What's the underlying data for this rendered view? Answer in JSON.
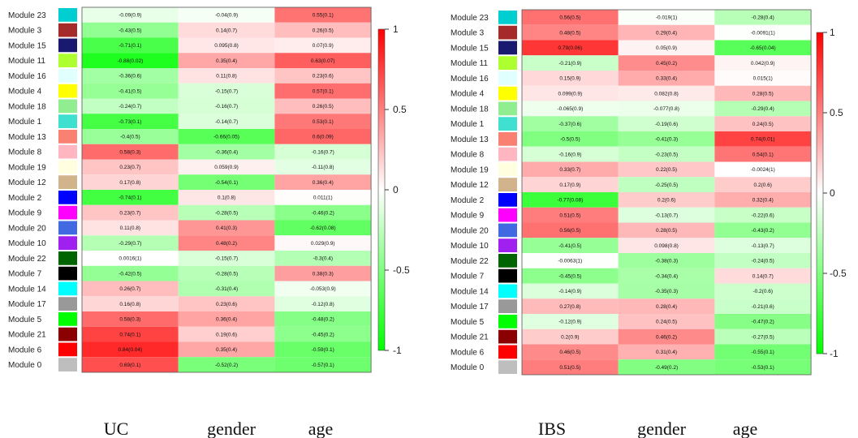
{
  "chart_data": [
    {
      "type": "heatmap",
      "columns": [
        "UC",
        "gender",
        "age"
      ],
      "rows": [
        "Module 23",
        "Module 3",
        "Module 15",
        "Module 11",
        "Module 16",
        "Module 4",
        "Module 18",
        "Module 1",
        "Module 13",
        "Module 8",
        "Module 19",
        "Module 12",
        "Module 2",
        "Module 9",
        "Module 20",
        "Module 10",
        "Module 22",
        "Module 7",
        "Module 14",
        "Module 17",
        "Module 5",
        "Module 21",
        "Module 6",
        "Module 0"
      ],
      "row_colors": [
        "#00CED1",
        "#A52A2A",
        "#191970",
        "#ADFF2F",
        "#E0FFFF",
        "#FFFF00",
        "#90EE90",
        "#40E0D0",
        "#FA8072",
        "#FFB6C1",
        "#FFFFE0",
        "#D2B48C",
        "#0000FF",
        "#FF00FF",
        "#4169E1",
        "#A020F0",
        "#006400",
        "#000000",
        "#00FFFF",
        "#999999",
        "#00FF00",
        "#8B0000",
        "#FF0000",
        "#BEBEBE"
      ],
      "values": [
        [
          -0.09,
          -0.04,
          0.55
        ],
        [
          -0.43,
          0.14,
          0.26
        ],
        [
          -0.71,
          0.095,
          0.07
        ],
        [
          -0.88,
          0.35,
          0.63
        ],
        [
          -0.36,
          0.11,
          0.23
        ],
        [
          -0.41,
          -0.15,
          0.57
        ],
        [
          -0.24,
          -0.16,
          0.26
        ],
        [
          -0.73,
          -0.14,
          0.53
        ],
        [
          -0.4,
          -0.66,
          0.6
        ],
        [
          0.58,
          -0.36,
          -0.16
        ],
        [
          0.23,
          0.059,
          -0.11
        ],
        [
          0.17,
          -0.54,
          0.36
        ],
        [
          -0.74,
          0.1,
          0.011
        ],
        [
          0.23,
          -0.28,
          -0.46
        ],
        [
          0.11,
          0.41,
          -0.62
        ],
        [
          -0.29,
          0.48,
          0.029
        ],
        [
          0.0016,
          -0.15,
          -0.3
        ],
        [
          -0.42,
          -0.28,
          0.38
        ],
        [
          0.26,
          -0.31,
          -0.053
        ],
        [
          0.16,
          0.23,
          -0.12
        ],
        [
          0.58,
          0.36,
          -0.48
        ],
        [
          0.74,
          0.19,
          -0.45
        ],
        [
          0.84,
          0.35,
          -0.59
        ],
        [
          0.69,
          -0.52,
          -0.57
        ]
      ],
      "cell_text": [
        [
          "-0.09(0.9)",
          "-0.04(0.9)",
          "0.55(0.1)"
        ],
        [
          "-0.43(0.5)",
          "0.14(0.7)",
          "0.26(0.5)"
        ],
        [
          "-0.71(0.1)",
          "0.095(0.8)",
          "0.07(0.9)"
        ],
        [
          "-0.88(0.02)",
          "0.35(0.4)",
          "0.63(0.07)"
        ],
        [
          "-0.36(0.6)",
          "0.11(0.8)",
          "0.23(0.6)"
        ],
        [
          "-0.41(0.5)",
          "-0.15(0.7)",
          "0.57(0.1)"
        ],
        [
          "-0.24(0.7)",
          "-0.16(0.7)",
          "0.26(0.5)"
        ],
        [
          "-0.73(0.1)",
          "-0.14(0.7)",
          "0.53(0.1)"
        ],
        [
          "-0.4(0.5)",
          "-0.66(0.05)",
          "0.6(0.09)"
        ],
        [
          "0.58(0.3)",
          "-0.36(0.4)",
          "-0.16(0.7)"
        ],
        [
          "0.23(0.7)",
          "0.059(0.9)",
          "-0.11(0.8)"
        ],
        [
          "0.17(0.8)",
          "-0.54(0.1)",
          "0.36(0.4)"
        ],
        [
          "-0.74(0.1)",
          "0.1(0.8)",
          "0.011(1)"
        ],
        [
          "0.23(0.7)",
          "-0.28(0.5)",
          "-0.46(0.2)"
        ],
        [
          "0.11(0.8)",
          "0.41(0.3)",
          "-0.62(0.08)"
        ],
        [
          "-0.29(0.7)",
          "0.48(0.2)",
          "0.029(0.9)"
        ],
        [
          "0.0016(1)",
          "-0.15(0.7)",
          "-0.3(0.4)"
        ],
        [
          "-0.42(0.5)",
          "-0.28(0.5)",
          "0.38(0.3)"
        ],
        [
          "0.26(0.7)",
          "-0.31(0.4)",
          "-0.053(0.9)"
        ],
        [
          "0.16(0.8)",
          "0.23(0.6)",
          "-0.12(0.8)"
        ],
        [
          "0.58(0.3)",
          "0.36(0.4)",
          "-0.48(0.2)"
        ],
        [
          "0.74(0.1)",
          "0.19(0.6)",
          "-0.45(0.2)"
        ],
        [
          "0.84(0.04)",
          "0.35(0.4)",
          "-0.59(0.1)"
        ],
        [
          "0.69(0.1)",
          "-0.52(0.2)",
          "-0.57(0.1)"
        ]
      ],
      "scale": {
        "min": -1,
        "max": 1,
        "ticks": [
          "1",
          "0.5",
          "0",
          "-0.5",
          "-1"
        ],
        "colors": {
          "low": "#00FF00",
          "mid": "#FFFFFF",
          "high": "#FF0000"
        }
      }
    },
    {
      "type": "heatmap",
      "columns": [
        "IBS",
        "gender",
        "age"
      ],
      "rows": [
        "Module 23",
        "Module 3",
        "Module 15",
        "Module 11",
        "Module 16",
        "Module 4",
        "Module 18",
        "Module 1",
        "Module 13",
        "Module 8",
        "Module 19",
        "Module 12",
        "Module 2",
        "Module 9",
        "Module 20",
        "Module 10",
        "Module 22",
        "Module 7",
        "Module 14",
        "Module 17",
        "Module 5",
        "Module 21",
        "Module 6",
        "Module 0"
      ],
      "row_colors": [
        "#00CED1",
        "#A52A2A",
        "#191970",
        "#ADFF2F",
        "#E0FFFF",
        "#FFFF00",
        "#90EE90",
        "#40E0D0",
        "#FA8072",
        "#FFB6C1",
        "#FFFFE0",
        "#D2B48C",
        "#0000FF",
        "#FF00FF",
        "#4169E1",
        "#A020F0",
        "#006400",
        "#000000",
        "#00FFFF",
        "#999999",
        "#00FF00",
        "#8B0000",
        "#FF0000",
        "#BEBEBE"
      ],
      "values": [
        [
          0.56,
          -0.019,
          -0.28
        ],
        [
          0.48,
          0.29,
          -0.0091
        ],
        [
          0.79,
          0.05,
          -0.65
        ],
        [
          -0.21,
          0.45,
          0.042
        ],
        [
          0.15,
          0.33,
          0.015
        ],
        [
          0.099,
          0.082,
          0.28
        ],
        [
          -0.065,
          -0.077,
          -0.29
        ],
        [
          -0.37,
          -0.19,
          0.24
        ],
        [
          -0.5,
          -0.41,
          0.74
        ],
        [
          -0.16,
          -0.23,
          0.54
        ],
        [
          0.33,
          0.22,
          -0.0024
        ],
        [
          0.17,
          -0.25,
          0.2
        ],
        [
          -0.77,
          0.2,
          0.32
        ],
        [
          0.51,
          -0.13,
          -0.22
        ],
        [
          0.56,
          0.28,
          -0.43
        ],
        [
          -0.41,
          0.098,
          -0.13
        ],
        [
          -0.0063,
          -0.38,
          -0.24
        ],
        [
          -0.45,
          -0.34,
          0.14
        ],
        [
          -0.14,
          -0.35,
          -0.2
        ],
        [
          0.27,
          0.28,
          -0.21
        ],
        [
          -0.12,
          0.24,
          -0.47
        ],
        [
          0.2,
          0.46,
          -0.27
        ],
        [
          0.46,
          0.31,
          -0.55
        ],
        [
          0.51,
          -0.49,
          -0.53
        ]
      ],
      "cell_text": [
        [
          "0.56(0.5)",
          "-0.019(1)",
          "-0.28(0.4)"
        ],
        [
          "0.48(0.5)",
          "0.29(0.4)",
          "-0.0091(1)"
        ],
        [
          "0.79(0.06)",
          "0.05(0.9)",
          "-0.65(0.04)"
        ],
        [
          "-0.21(0.9)",
          "0.45(0.2)",
          "0.042(0.9)"
        ],
        [
          "0.15(0.9)",
          "0.33(0.4)",
          "0.015(1)"
        ],
        [
          "0.099(0.9)",
          "0.082(0.8)",
          "0.28(0.5)"
        ],
        [
          "-0.065(0.9)",
          "-0.077(0.8)",
          "-0.29(0.4)"
        ],
        [
          "-0.37(0.6)",
          "-0.19(0.6)",
          "0.24(0.5)"
        ],
        [
          "-0.5(0.5)",
          "-0.41(0.3)",
          "0.74(0.01)"
        ],
        [
          "-0.16(0.9)",
          "-0.23(0.5)",
          "0.54(0.1)"
        ],
        [
          "0.33(0.7)",
          "0.22(0.5)",
          "-0.0024(1)"
        ],
        [
          "0.17(0.9)",
          "-0.25(0.5)",
          "0.2(0.6)"
        ],
        [
          "-0.77(0.08)",
          "0.2(0.6)",
          "0.32(0.4)"
        ],
        [
          "0.51(0.5)",
          "-0.13(0.7)",
          "-0.22(0.6)"
        ],
        [
          "0.56(0.5)",
          "0.28(0.5)",
          "-0.43(0.2)"
        ],
        [
          "-0.41(0.5)",
          "0.098(0.8)",
          "-0.13(0.7)"
        ],
        [
          "-0.0063(1)",
          "-0.38(0.3)",
          "-0.24(0.5)"
        ],
        [
          "-0.45(0.5)",
          "-0.34(0.4)",
          "0.14(0.7)"
        ],
        [
          "-0.14(0.9)",
          "-0.35(0.3)",
          "-0.2(0.6)"
        ],
        [
          "0.27(0.8)",
          "0.28(0.4)",
          "-0.21(0.6)"
        ],
        [
          "-0.12(0.9)",
          "0.24(0.5)",
          "-0.47(0.2)"
        ],
        [
          "0.2(0.9)",
          "0.46(0.2)",
          "-0.27(0.5)"
        ],
        [
          "0.46(0.5)",
          "0.31(0.4)",
          "-0.55(0.1)"
        ],
        [
          "0.51(0.5)",
          "-0.49(0.2)",
          "-0.53(0.1)"
        ]
      ],
      "scale": {
        "min": -1,
        "max": 1,
        "ticks": [
          "1",
          "0.5",
          "0",
          "-0.5",
          "-1"
        ],
        "colors": {
          "low": "#00FF00",
          "mid": "#FFFFFF",
          "high": "#FF0000"
        }
      }
    }
  ]
}
